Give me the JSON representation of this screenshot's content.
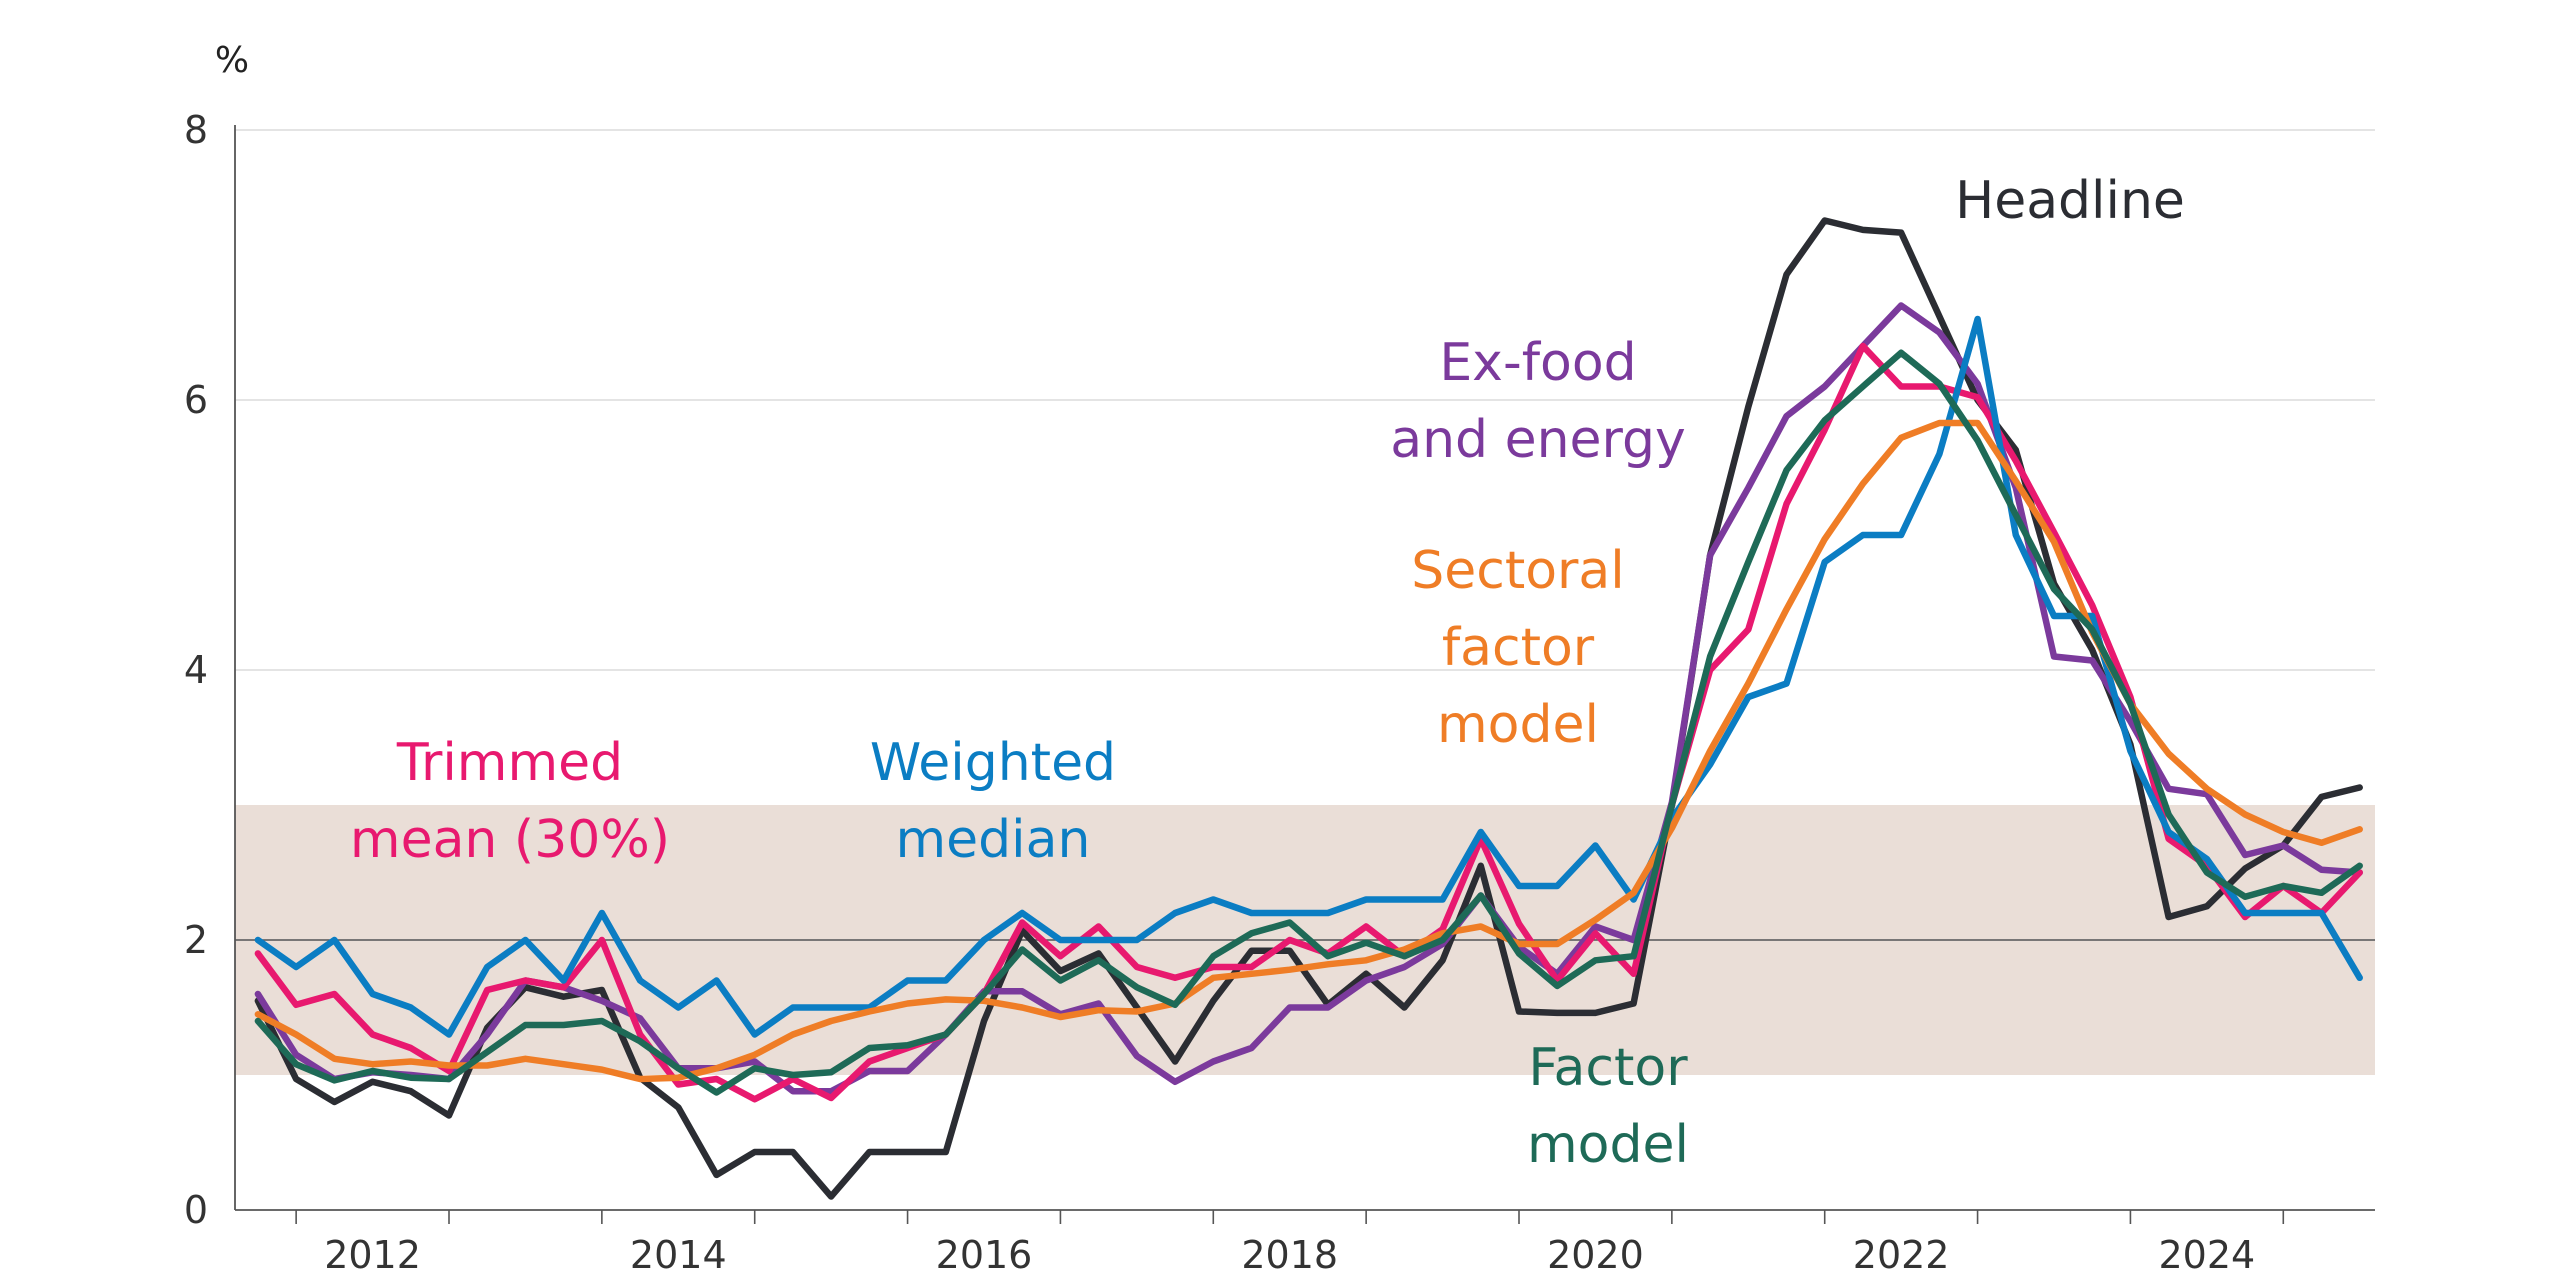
{
  "chart_data": {
    "type": "line",
    "unit_label": "%",
    "ylim": [
      0,
      8
    ],
    "y_ticks": [
      0,
      2,
      4,
      6,
      8
    ],
    "xlim": [
      2011.6,
      2025.6
    ],
    "x_ticks": [
      2012,
      2014,
      2016,
      2018,
      2020,
      2022,
      2024
    ],
    "target_band": [
      1,
      3
    ],
    "reference_line": 2,
    "grid": true,
    "quarters_start": 2011.75,
    "quarters_step": 0.25,
    "series": [
      {
        "name": "Headline",
        "color": "#2b2d33",
        "label_lines": [
          "Headline"
        ],
        "values": [
          1.55,
          0.97,
          0.8,
          0.95,
          0.88,
          0.7,
          1.35,
          1.65,
          1.58,
          1.63,
          0.98,
          0.76,
          0.26,
          0.43,
          0.43,
          0.1,
          0.43,
          0.43,
          0.43,
          1.4,
          2.07,
          1.77,
          1.9,
          1.5,
          1.1,
          1.55,
          1.92,
          1.92,
          1.52,
          1.75,
          1.5,
          1.85,
          2.55,
          1.47,
          1.46,
          1.46,
          1.53,
          3.0,
          4.85,
          5.95,
          6.93,
          7.33,
          7.26,
          7.24,
          6.62,
          6.0,
          5.63,
          4.64,
          4.15,
          3.45,
          2.17,
          2.25,
          2.53,
          2.7,
          3.06,
          3.13
        ]
      },
      {
        "name": "Ex-food and energy",
        "color": "#7b3a9c",
        "label_lines": [
          "Ex-food",
          "and energy"
        ],
        "values": [
          1.6,
          1.15,
          0.97,
          1.02,
          1.0,
          0.97,
          1.3,
          1.7,
          1.65,
          1.55,
          1.42,
          1.05,
          1.05,
          1.1,
          0.88,
          0.88,
          1.03,
          1.03,
          1.3,
          1.62,
          1.62,
          1.45,
          1.53,
          1.14,
          0.95,
          1.1,
          1.2,
          1.5,
          1.5,
          1.7,
          1.8,
          1.97,
          2.33,
          1.95,
          1.75,
          2.1,
          2.0,
          3.02,
          4.85,
          5.35,
          5.88,
          6.1,
          6.4,
          6.7,
          6.5,
          6.12,
          5.35,
          4.1,
          4.07,
          3.62,
          3.12,
          3.08,
          2.63,
          2.7,
          2.52,
          2.5
        ]
      },
      {
        "name": "Trimmed mean (30%)",
        "color": "#e8196f",
        "label_lines": [
          "Trimmed",
          "mean (30%)"
        ],
        "values": [
          1.9,
          1.52,
          1.6,
          1.3,
          1.2,
          1.03,
          1.63,
          1.7,
          1.65,
          2.0,
          1.3,
          0.93,
          0.97,
          0.82,
          0.97,
          0.83,
          1.1,
          1.2,
          1.3,
          1.6,
          2.13,
          1.88,
          2.1,
          1.8,
          1.72,
          1.8,
          1.8,
          2.0,
          1.9,
          2.1,
          1.88,
          2.08,
          2.75,
          2.12,
          1.7,
          2.05,
          1.75,
          3.0,
          4.0,
          4.3,
          5.23,
          5.78,
          6.4,
          6.1,
          6.1,
          6.02,
          5.55,
          5.02,
          4.48,
          3.8,
          2.75,
          2.55,
          2.17,
          2.4,
          2.2,
          2.5
        ]
      },
      {
        "name": "Weighted median",
        "color": "#0b7dc3",
        "label_lines": [
          "Weighted",
          "median"
        ],
        "values": [
          2.0,
          1.8,
          2.0,
          1.6,
          1.5,
          1.3,
          1.8,
          2.0,
          1.7,
          2.2,
          1.7,
          1.5,
          1.7,
          1.3,
          1.5,
          1.5,
          1.5,
          1.7,
          1.7,
          2.0,
          2.2,
          2.0,
          2.0,
          2.0,
          2.2,
          2.3,
          2.2,
          2.2,
          2.2,
          2.3,
          2.3,
          2.3,
          2.8,
          2.4,
          2.4,
          2.7,
          2.3,
          2.9,
          3.3,
          3.8,
          3.9,
          4.8,
          5.0,
          5.0,
          5.6,
          6.6,
          5.0,
          4.4,
          4.4,
          3.4,
          2.8,
          2.6,
          2.2,
          2.2,
          2.2,
          1.72
        ]
      },
      {
        "name": "Sectoral factor model",
        "color": "#ef7d26",
        "label_lines": [
          "Sectoral",
          "factor",
          "model"
        ],
        "values": [
          1.45,
          1.3,
          1.12,
          1.08,
          1.1,
          1.07,
          1.07,
          1.12,
          1.08,
          1.04,
          0.97,
          0.98,
          1.05,
          1.15,
          1.3,
          1.4,
          1.47,
          1.53,
          1.56,
          1.55,
          1.5,
          1.43,
          1.48,
          1.47,
          1.53,
          1.72,
          1.75,
          1.78,
          1.82,
          1.85,
          1.93,
          2.05,
          2.1,
          1.97,
          1.97,
          2.15,
          2.35,
          2.83,
          3.4,
          3.9,
          4.45,
          4.97,
          5.38,
          5.72,
          5.83,
          5.83,
          5.4,
          4.95,
          4.28,
          3.75,
          3.38,
          3.12,
          2.93,
          2.8,
          2.72,
          2.82
        ]
      },
      {
        "name": "Factor model",
        "color": "#1e6a57",
        "label_lines": [
          "Factor",
          "model"
        ],
        "values": [
          1.4,
          1.08,
          0.96,
          1.03,
          0.98,
          0.97,
          1.17,
          1.37,
          1.37,
          1.4,
          1.25,
          1.05,
          0.87,
          1.05,
          1.0,
          1.02,
          1.2,
          1.22,
          1.3,
          1.6,
          1.93,
          1.7,
          1.85,
          1.65,
          1.52,
          1.88,
          2.05,
          2.13,
          1.88,
          1.98,
          1.88,
          2.0,
          2.33,
          1.9,
          1.66,
          1.85,
          1.88,
          3.0,
          4.1,
          4.8,
          5.48,
          5.85,
          6.1,
          6.35,
          6.12,
          5.7,
          5.15,
          4.6,
          4.3,
          3.75,
          2.93,
          2.5,
          2.32,
          2.4,
          2.35,
          2.55
        ]
      }
    ]
  }
}
